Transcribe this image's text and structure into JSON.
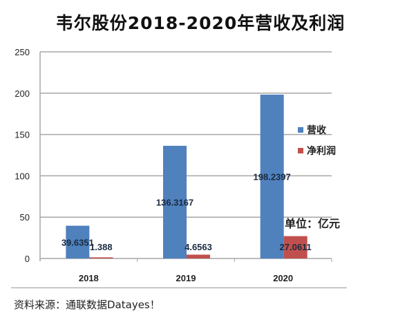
{
  "chart_data": {
    "type": "bar",
    "title": "韦尔股份2018-2020年营收及利润",
    "categories": [
      "2018",
      "2019",
      "2020"
    ],
    "series": [
      {
        "name": "营收",
        "color": "#4f81bd",
        "values": [
          39.6351,
          136.3167,
          198.2397
        ],
        "labels": [
          "39.6351",
          "136.3167",
          "198.2397"
        ]
      },
      {
        "name": "净利润",
        "color": "#c0504d",
        "values": [
          1.388,
          4.6563,
          27.0611
        ],
        "labels": [
          "1.388",
          "4.6563",
          "27.0611"
        ]
      }
    ],
    "yticks": [
      "0",
      "50",
      "100",
      "150",
      "200",
      "250"
    ],
    "ylim": [
      0,
      250
    ],
    "xlabel": "",
    "ylabel": "",
    "grid": true,
    "legend": "right"
  },
  "unit_label": "单位：亿元",
  "source": "资料来源：通联数据Datayes！"
}
